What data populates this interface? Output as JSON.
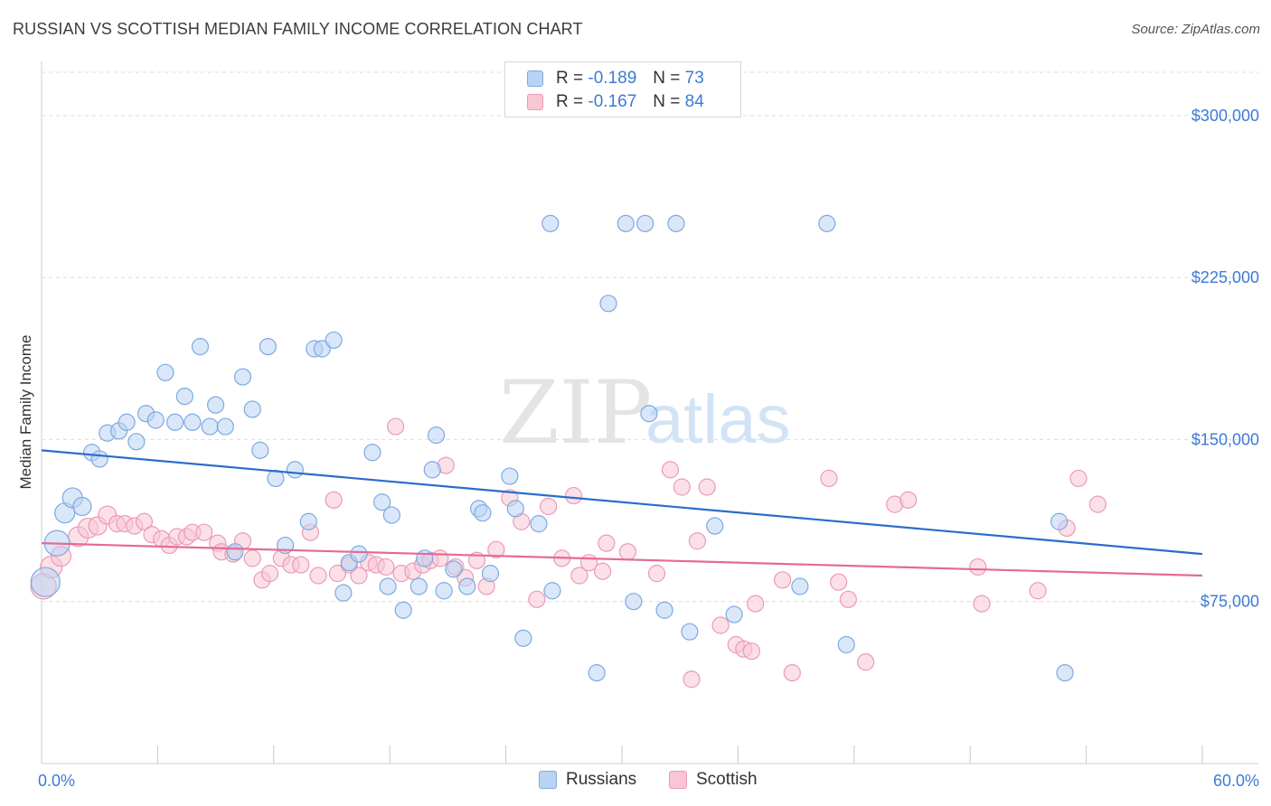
{
  "header": {
    "title": "RUSSIAN VS SCOTTISH MEDIAN FAMILY INCOME CORRELATION CHART",
    "source": "Source: ZipAtlas.com"
  },
  "watermark": {
    "zip": "ZIP",
    "atlas": "atlas"
  },
  "legend": {
    "r_label": "R =",
    "n_label": "N =",
    "rows": [
      {
        "r": "-0.189",
        "n": "73"
      },
      {
        "r": "-0.167",
        "n": "84"
      }
    ]
  },
  "colors": {
    "russians_fill": "#b9d3f3",
    "russians_stroke": "#7ea9e2",
    "russians_line": "#2b6ccc",
    "scottish_fill": "#f8c6d5",
    "scottish_stroke": "#ec9ab4",
    "scottish_line": "#e56a93",
    "axis_text": "#3d7ad6"
  },
  "chart_data": {
    "type": "scatter",
    "title": "RUSSIAN VS SCOTTISH MEDIAN FAMILY INCOME CORRELATION CHART",
    "xlabel": "",
    "ylabel": "Median Family Income",
    "x_unit": "%",
    "xlim": [
      0,
      60
    ],
    "ylim": [
      0,
      320000
    ],
    "x_tick_labels": [
      "0.0%",
      "60.0%"
    ],
    "y_ticks": [
      75000,
      150000,
      225000,
      300000
    ],
    "y_tick_labels": [
      "$75,000",
      "$150,000",
      "$225,000",
      "$300,000"
    ],
    "legend_position": "top-center",
    "series": [
      {
        "name": "Russians",
        "R": -0.189,
        "N": 73,
        "trend": {
          "x": [
            0,
            60
          ],
          "y": [
            145000,
            97000
          ]
        },
        "points": [
          {
            "x": 0.2,
            "y": 84000,
            "r": 16
          },
          {
            "x": 0.8,
            "y": 102000,
            "r": 14
          },
          {
            "x": 1.2,
            "y": 116000,
            "r": 11
          },
          {
            "x": 1.6,
            "y": 123000,
            "r": 11
          },
          {
            "x": 2.1,
            "y": 119000,
            "r": 10
          },
          {
            "x": 2.6,
            "y": 144000
          },
          {
            "x": 3.0,
            "y": 141000
          },
          {
            "x": 3.4,
            "y": 153000
          },
          {
            "x": 4.0,
            "y": 154000
          },
          {
            "x": 4.4,
            "y": 158000
          },
          {
            "x": 4.9,
            "y": 149000
          },
          {
            "x": 5.4,
            "y": 162000
          },
          {
            "x": 5.9,
            "y": 159000
          },
          {
            "x": 6.4,
            "y": 181000
          },
          {
            "x": 6.9,
            "y": 158000
          },
          {
            "x": 7.4,
            "y": 170000
          },
          {
            "x": 7.8,
            "y": 158000
          },
          {
            "x": 8.2,
            "y": 193000
          },
          {
            "x": 8.7,
            "y": 156000
          },
          {
            "x": 9.0,
            "y": 166000
          },
          {
            "x": 9.5,
            "y": 156000
          },
          {
            "x": 10.0,
            "y": 98000
          },
          {
            "x": 10.4,
            "y": 179000
          },
          {
            "x": 10.9,
            "y": 164000
          },
          {
            "x": 11.3,
            "y": 145000
          },
          {
            "x": 11.7,
            "y": 193000
          },
          {
            "x": 12.1,
            "y": 132000
          },
          {
            "x": 12.6,
            "y": 101000
          },
          {
            "x": 13.1,
            "y": 136000
          },
          {
            "x": 13.8,
            "y": 112000
          },
          {
            "x": 14.1,
            "y": 192000
          },
          {
            "x": 14.5,
            "y": 192000
          },
          {
            "x": 15.1,
            "y": 196000
          },
          {
            "x": 15.6,
            "y": 79000
          },
          {
            "x": 15.9,
            "y": 93000
          },
          {
            "x": 16.4,
            "y": 97000
          },
          {
            "x": 17.1,
            "y": 144000
          },
          {
            "x": 17.6,
            "y": 121000
          },
          {
            "x": 17.9,
            "y": 82000
          },
          {
            "x": 18.1,
            "y": 115000
          },
          {
            "x": 18.7,
            "y": 71000
          },
          {
            "x": 19.5,
            "y": 82000
          },
          {
            "x": 19.8,
            "y": 95000
          },
          {
            "x": 20.2,
            "y": 136000
          },
          {
            "x": 20.4,
            "y": 152000
          },
          {
            "x": 20.8,
            "y": 80000
          },
          {
            "x": 21.3,
            "y": 90000
          },
          {
            "x": 22.0,
            "y": 82000
          },
          {
            "x": 22.6,
            "y": 118000
          },
          {
            "x": 22.8,
            "y": 116000
          },
          {
            "x": 23.2,
            "y": 88000
          },
          {
            "x": 24.2,
            "y": 133000
          },
          {
            "x": 24.5,
            "y": 118000
          },
          {
            "x": 24.9,
            "y": 58000
          },
          {
            "x": 25.7,
            "y": 111000
          },
          {
            "x": 26.3,
            "y": 250000
          },
          {
            "x": 26.4,
            "y": 80000
          },
          {
            "x": 28.7,
            "y": 42000
          },
          {
            "x": 29.3,
            "y": 213000
          },
          {
            "x": 30.2,
            "y": 250000
          },
          {
            "x": 30.6,
            "y": 75000
          },
          {
            "x": 31.2,
            "y": 250000
          },
          {
            "x": 31.4,
            "y": 162000
          },
          {
            "x": 32.2,
            "y": 71000
          },
          {
            "x": 32.8,
            "y": 250000
          },
          {
            "x": 33.5,
            "y": 61000
          },
          {
            "x": 34.8,
            "y": 110000
          },
          {
            "x": 35.8,
            "y": 69000
          },
          {
            "x": 39.2,
            "y": 82000
          },
          {
            "x": 40.6,
            "y": 250000
          },
          {
            "x": 41.6,
            "y": 55000
          },
          {
            "x": 52.6,
            "y": 112000
          },
          {
            "x": 52.9,
            "y": 42000
          }
        ]
      },
      {
        "name": "Scottish",
        "R": -0.167,
        "N": 84,
        "trend": {
          "x": [
            0,
            60
          ],
          "y": [
            102000,
            87000
          ]
        },
        "points": [
          {
            "x": 0.1,
            "y": 82000,
            "r": 14
          },
          {
            "x": 0.5,
            "y": 91000,
            "r": 12
          },
          {
            "x": 1.0,
            "y": 96000,
            "r": 11
          },
          {
            "x": 1.9,
            "y": 105000,
            "r": 11
          },
          {
            "x": 2.4,
            "y": 109000,
            "r": 11
          },
          {
            "x": 2.9,
            "y": 110000,
            "r": 10
          },
          {
            "x": 3.4,
            "y": 115000,
            "r": 10
          },
          {
            "x": 3.9,
            "y": 111000
          },
          {
            "x": 4.3,
            "y": 111000
          },
          {
            "x": 4.8,
            "y": 110000
          },
          {
            "x": 5.3,
            "y": 112000
          },
          {
            "x": 5.7,
            "y": 106000
          },
          {
            "x": 6.2,
            "y": 104000
          },
          {
            "x": 6.6,
            "y": 101000
          },
          {
            "x": 7.0,
            "y": 105000
          },
          {
            "x": 7.5,
            "y": 105000
          },
          {
            "x": 7.8,
            "y": 107000
          },
          {
            "x": 8.4,
            "y": 107000
          },
          {
            "x": 9.1,
            "y": 102000
          },
          {
            "x": 9.3,
            "y": 98000
          },
          {
            "x": 9.9,
            "y": 97000
          },
          {
            "x": 10.4,
            "y": 103000
          },
          {
            "x": 10.9,
            "y": 95000
          },
          {
            "x": 11.4,
            "y": 85000
          },
          {
            "x": 11.8,
            "y": 88000
          },
          {
            "x": 12.4,
            "y": 95000
          },
          {
            "x": 12.9,
            "y": 92000
          },
          {
            "x": 13.4,
            "y": 92000
          },
          {
            "x": 13.9,
            "y": 107000
          },
          {
            "x": 14.3,
            "y": 87000
          },
          {
            "x": 15.1,
            "y": 122000
          },
          {
            "x": 15.3,
            "y": 88000
          },
          {
            "x": 15.9,
            "y": 92000
          },
          {
            "x": 16.4,
            "y": 87000
          },
          {
            "x": 16.9,
            "y": 93000
          },
          {
            "x": 17.3,
            "y": 92000
          },
          {
            "x": 17.8,
            "y": 91000
          },
          {
            "x": 18.3,
            "y": 156000
          },
          {
            "x": 18.6,
            "y": 88000
          },
          {
            "x": 19.2,
            "y": 89000
          },
          {
            "x": 19.7,
            "y": 92000
          },
          {
            "x": 20.1,
            "y": 94000
          },
          {
            "x": 20.6,
            "y": 95000
          },
          {
            "x": 20.9,
            "y": 138000
          },
          {
            "x": 21.4,
            "y": 91000
          },
          {
            "x": 21.9,
            "y": 86000
          },
          {
            "x": 22.5,
            "y": 94000
          },
          {
            "x": 23.0,
            "y": 82000
          },
          {
            "x": 23.5,
            "y": 99000
          },
          {
            "x": 24.2,
            "y": 123000
          },
          {
            "x": 24.8,
            "y": 112000
          },
          {
            "x": 25.6,
            "y": 76000
          },
          {
            "x": 26.2,
            "y": 119000
          },
          {
            "x": 26.9,
            "y": 95000
          },
          {
            "x": 27.5,
            "y": 124000
          },
          {
            "x": 27.8,
            "y": 87000
          },
          {
            "x": 28.3,
            "y": 93000
          },
          {
            "x": 29.0,
            "y": 89000
          },
          {
            "x": 29.2,
            "y": 102000
          },
          {
            "x": 30.3,
            "y": 98000
          },
          {
            "x": 31.8,
            "y": 88000
          },
          {
            "x": 32.5,
            "y": 136000
          },
          {
            "x": 33.1,
            "y": 128000
          },
          {
            "x": 33.6,
            "y": 39000
          },
          {
            "x": 33.9,
            "y": 103000
          },
          {
            "x": 34.4,
            "y": 128000
          },
          {
            "x": 35.1,
            "y": 64000
          },
          {
            "x": 35.9,
            "y": 55000
          },
          {
            "x": 36.3,
            "y": 53000
          },
          {
            "x": 36.7,
            "y": 52000
          },
          {
            "x": 36.9,
            "y": 74000
          },
          {
            "x": 38.3,
            "y": 85000
          },
          {
            "x": 38.8,
            "y": 42000
          },
          {
            "x": 40.7,
            "y": 132000
          },
          {
            "x": 41.2,
            "y": 84000
          },
          {
            "x": 41.7,
            "y": 76000
          },
          {
            "x": 42.6,
            "y": 47000
          },
          {
            "x": 44.1,
            "y": 120000
          },
          {
            "x": 44.8,
            "y": 122000
          },
          {
            "x": 48.4,
            "y": 91000
          },
          {
            "x": 48.6,
            "y": 74000
          },
          {
            "x": 51.5,
            "y": 80000
          },
          {
            "x": 53.0,
            "y": 109000
          },
          {
            "x": 53.6,
            "y": 132000
          },
          {
            "x": 54.6,
            "y": 120000
          }
        ]
      }
    ]
  },
  "bottom_legend": {
    "items": [
      "Russians",
      "Scottish"
    ]
  }
}
